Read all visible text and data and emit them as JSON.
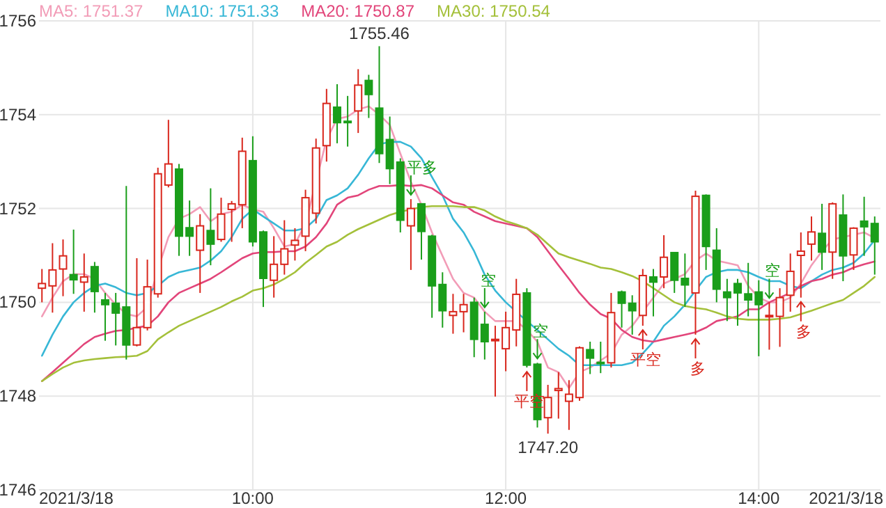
{
  "chart_data": {
    "type": "candlestick",
    "x": [
      8.3333,
      8.4167,
      8.5,
      8.5833,
      8.6667,
      8.75,
      8.8333,
      8.9167,
      9,
      9.0833,
      9.1667,
      9.25,
      9.3333,
      9.4167,
      9.5,
      9.5833,
      9.6667,
      9.75,
      9.8333,
      9.9167,
      10,
      10.0833,
      10.1667,
      10.25,
      10.3333,
      10.4167,
      10.5,
      10.5833,
      10.6667,
      10.75,
      10.8333,
      10.9167,
      11,
      11.0833,
      11.1667,
      11.25,
      11.3333,
      11.4167,
      11.5,
      11.5833,
      11.6667,
      11.75,
      11.8333,
      11.9167,
      12,
      12.0833,
      12.1667,
      12.25,
      12.3333,
      12.4167,
      12.5,
      12.5833,
      12.6667,
      12.75,
      12.8333,
      12.9167,
      13,
      13.0833,
      13.1667,
      13.25,
      13.3333,
      13.4167,
      13.5,
      13.5833,
      13.6667,
      13.75,
      13.8333,
      13.9167,
      14,
      14.0833,
      14.1667,
      14.25,
      14.3333,
      14.4167,
      14.5,
      14.5833,
      14.6667,
      14.75,
      14.8333,
      14.9167
    ],
    "ohlc": [
      [
        1750.3,
        1750.71,
        1750.0,
        1750.4
      ],
      [
        1750.35,
        1751.26,
        1749.78,
        1750.69
      ],
      [
        1750.71,
        1751.34,
        1750.13,
        1750.99
      ],
      [
        1750.59,
        1751.55,
        1750.18,
        1750.48
      ],
      [
        1750.43,
        1751.04,
        1749.8,
        1750.54
      ],
      [
        1750.76,
        1750.86,
        1749.78,
        1750.23
      ],
      [
        1750.05,
        1750.2,
        1749.18,
        1749.95
      ],
      [
        1749.98,
        1750.2,
        1749.08,
        1749.77
      ],
      [
        1749.9,
        1752.48,
        1748.78,
        1749.09
      ],
      [
        1749.09,
        1750.94,
        1749.06,
        1749.46
      ],
      [
        1749.46,
        1750.91,
        1749.4,
        1750.33
      ],
      [
        1750.18,
        1752.87,
        1750.1,
        1752.74
      ],
      [
        1752.5,
        1753.89,
        1752.45,
        1752.95
      ],
      [
        1752.84,
        1752.95,
        1750.99,
        1751.41
      ],
      [
        1751.59,
        1752.17,
        1750.99,
        1751.41
      ],
      [
        1751.11,
        1751.88,
        1750.2,
        1751.63
      ],
      [
        1751.53,
        1752.43,
        1750.79,
        1751.24
      ],
      [
        1751.34,
        1752.23,
        1751.29,
        1751.88
      ],
      [
        1751.98,
        1752.16,
        1751.29,
        1752.1
      ],
      [
        1752.08,
        1753.51,
        1751.58,
        1753.22
      ],
      [
        1753.02,
        1753.54,
        1751.19,
        1751.29
      ],
      [
        1751.5,
        1751.53,
        1749.9,
        1750.51
      ],
      [
        1750.47,
        1751.41,
        1750.1,
        1750.81
      ],
      [
        1750.81,
        1751.75,
        1750.59,
        1751.14
      ],
      [
        1751.22,
        1751.58,
        1750.89,
        1751.32
      ],
      [
        1751.41,
        1752.4,
        1751.09,
        1752.23
      ],
      [
        1751.9,
        1753.49,
        1751.68,
        1753.29
      ],
      [
        1753.34,
        1754.55,
        1753.0,
        1754.24
      ],
      [
        1754.16,
        1754.65,
        1753.39,
        1753.83
      ],
      [
        1753.86,
        1754.4,
        1753.32,
        1753.84
      ],
      [
        1754.08,
        1754.97,
        1753.61,
        1754.63
      ],
      [
        1754.73,
        1754.85,
        1753.93,
        1754.43
      ],
      [
        1754.14,
        1755.46,
        1752.97,
        1753.17
      ],
      [
        1753.47,
        1753.96,
        1752.52,
        1752.85
      ],
      [
        1752.99,
        1753.07,
        1751.49,
        1751.75
      ],
      [
        1751.63,
        1752.2,
        1750.69,
        1752.0
      ],
      [
        1752.1,
        1752.1,
        1750.91,
        1751.51
      ],
      [
        1751.41,
        1751.44,
        1749.67,
        1750.35
      ],
      [
        1750.38,
        1750.64,
        1749.46,
        1749.82
      ],
      [
        1749.72,
        1750.18,
        1749.33,
        1749.8
      ],
      [
        1749.8,
        1750.18,
        1749.36,
        1749.95
      ],
      [
        1750.0,
        1750.1,
        1748.83,
        1749.21
      ],
      [
        1749.53,
        1749.8,
        1748.78,
        1749.16
      ],
      [
        1749.19,
        1749.5,
        1747.99,
        1749.21
      ],
      [
        1749.01,
        1749.8,
        1748.53,
        1749.46
      ],
      [
        1749.41,
        1750.5,
        1749.06,
        1750.17
      ],
      [
        1750.2,
        1750.3,
        1748.61,
        1748.66
      ],
      [
        1748.68,
        1748.71,
        1747.33,
        1747.5
      ],
      [
        1747.54,
        1748.24,
        1747.2,
        1747.97
      ],
      [
        1748.12,
        1748.51,
        1747.52,
        1748.16
      ],
      [
        1747.89,
        1748.34,
        1747.28,
        1748.04
      ],
      [
        1747.97,
        1749.06,
        1747.9,
        1749.03
      ],
      [
        1748.99,
        1749.16,
        1748.47,
        1748.81
      ],
      [
        1748.72,
        1749.16,
        1748.49,
        1748.71
      ],
      [
        1748.71,
        1750.2,
        1748.61,
        1749.78
      ],
      [
        1750.22,
        1750.25,
        1749.46,
        1749.98
      ],
      [
        1749.98,
        1750.15,
        1749.31,
        1749.82
      ],
      [
        1749.72,
        1750.71,
        1749.5,
        1750.57
      ],
      [
        1750.54,
        1750.71,
        1749.7,
        1750.43
      ],
      [
        1750.54,
        1751.43,
        1750.3,
        1750.96
      ],
      [
        1751.06,
        1751.06,
        1750.2,
        1750.47
      ],
      [
        1750.51,
        1751.04,
        1749.9,
        1750.37
      ],
      [
        1750.2,
        1752.38,
        1749.31,
        1752.26
      ],
      [
        1752.28,
        1752.3,
        1750.69,
        1751.19
      ],
      [
        1751.11,
        1751.58,
        1750.0,
        1750.28
      ],
      [
        1750.22,
        1750.5,
        1749.6,
        1750.1
      ],
      [
        1750.4,
        1750.5,
        1749.5,
        1750.2
      ],
      [
        1750.18,
        1750.84,
        1749.7,
        1750.05
      ],
      [
        1750.22,
        1750.47,
        1748.85,
        1749.95
      ],
      [
        1749.69,
        1750.0,
        1748.99,
        1749.72
      ],
      [
        1749.7,
        1750.3,
        1749.05,
        1750.1
      ],
      [
        1750.15,
        1751.04,
        1749.8,
        1750.66
      ],
      [
        1751.0,
        1751.49,
        1750.1,
        1751.09
      ],
      [
        1751.24,
        1751.83,
        1750.89,
        1751.5
      ],
      [
        1751.47,
        1752.1,
        1750.69,
        1751.07
      ],
      [
        1751.07,
        1752.13,
        1750.5,
        1752.1
      ],
      [
        1751.86,
        1752.3,
        1750.45,
        1750.99
      ],
      [
        1751.01,
        1751.6,
        1750.69,
        1751.58
      ],
      [
        1751.73,
        1752.25,
        1750.99,
        1751.61
      ],
      [
        1751.68,
        1751.83,
        1750.59,
        1751.29
      ]
    ],
    "colors": [
      "#d9261c",
      "#d9261c",
      "#d9261c",
      "#1a9e1a",
      "#d9261c",
      "#1a9e1a",
      "#1a9e1a",
      "#1a9e1a",
      "#1a9e1a",
      "#d9261c",
      "#d9261c",
      "#d9261c",
      "#d9261c",
      "#1a9e1a",
      "#1a9e1a",
      "#d9261c",
      "#1a9e1a",
      "#d9261c",
      "#d9261c",
      "#d9261c",
      "#1a9e1a",
      "#1a9e1a",
      "#d9261c",
      "#d9261c",
      "#d9261c",
      "#d9261c",
      "#d9261c",
      "#d9261c",
      "#1a9e1a",
      "#1a9e1a",
      "#d9261c",
      "#1a9e1a",
      "#1a9e1a",
      "#1a9e1a",
      "#1a9e1a",
      "#d9261c",
      "#1a9e1a",
      "#1a9e1a",
      "#1a9e1a",
      "#d9261c",
      "#d9261c",
      "#1a9e1a",
      "#1a9e1a",
      "#d9261c",
      "#d9261c",
      "#d9261c",
      "#1a9e1a",
      "#1a9e1a",
      "#d9261c",
      "#d9261c",
      "#d9261c",
      "#d9261c",
      "#1a9e1a",
      "#1a9e1a",
      "#d9261c",
      "#1a9e1a",
      "#1a9e1a",
      "#d9261c",
      "#1a9e1a",
      "#d9261c",
      "#1a9e1a",
      "#1a9e1a",
      "#d9261c",
      "#1a9e1a",
      "#1a9e1a",
      "#1a9e1a",
      "#1a9e1a",
      "#1a9e1a",
      "#1a9e1a",
      "#d9261c",
      "#d9261c",
      "#d9261c",
      "#d9261c",
      "#d9261c",
      "#1a9e1a",
      "#d9261c",
      "#1a9e1a",
      "#d9261c",
      "#1a9e1a",
      "#1a9e1a"
    ],
    "series": [
      {
        "type": "line",
        "name": "MA5: 1751.37",
        "color": "#f29cb7",
        "values": [
          1749.7,
          1750.1,
          1750.45,
          1750.6,
          1750.6,
          1750.5,
          1750.2,
          1749.95,
          1749.75,
          1749.7,
          1749.9,
          1750.7,
          1751.39,
          1751.78,
          1751.88,
          1752.03,
          1751.73,
          1751.88,
          1751.93,
          1752.08,
          1751.98,
          1751.93,
          1751.58,
          1751.19,
          1751.24,
          1751.68,
          1752.57,
          1753.47,
          1753.91,
          1753.96,
          1754.11,
          1754.18,
          1754.0,
          1753.78,
          1753.17,
          1752.57,
          1752.08,
          1751.49,
          1750.99,
          1750.5,
          1750.2,
          1750.1,
          1749.8,
          1749.6,
          1749.6,
          1749.6,
          1749.41,
          1749.16,
          1748.61,
          1748.51,
          1748.17,
          1748.51,
          1748.61,
          1748.76,
          1748.91,
          1749.31,
          1749.5,
          1749.8,
          1750.1,
          1750.4,
          1750.5,
          1750.6,
          1750.89,
          1751.04,
          1750.89,
          1750.84,
          1750.79,
          1750.35,
          1750.1,
          1750.0,
          1750.0,
          1750.1,
          1750.4,
          1750.79,
          1751.09,
          1751.34,
          1751.39,
          1751.44,
          1751.49,
          1751.37
        ]
      },
      {
        "type": "line",
        "name": "MA10: 1751.33",
        "color": "#37b7d6",
        "values": [
          1748.86,
          1749.31,
          1749.7,
          1750.0,
          1750.2,
          1750.35,
          1750.4,
          1750.32,
          1750.2,
          1750.15,
          1750.2,
          1750.35,
          1750.54,
          1750.64,
          1750.69,
          1750.74,
          1750.89,
          1751.09,
          1751.39,
          1751.78,
          1751.98,
          1751.83,
          1751.68,
          1751.53,
          1751.53,
          1751.58,
          1751.78,
          1752.18,
          1752.28,
          1752.43,
          1752.72,
          1753.07,
          1753.37,
          1753.42,
          1753.42,
          1753.32,
          1753.07,
          1752.67,
          1752.28,
          1751.78,
          1751.49,
          1751.09,
          1750.59,
          1750.25,
          1750.0,
          1749.8,
          1749.6,
          1749.41,
          1749.21,
          1749.01,
          1748.86,
          1748.66,
          1748.66,
          1748.66,
          1748.66,
          1748.66,
          1748.71,
          1748.91,
          1749.16,
          1749.5,
          1749.7,
          1749.95,
          1750.25,
          1750.54,
          1750.64,
          1750.69,
          1750.69,
          1750.64,
          1750.54,
          1750.45,
          1750.45,
          1750.35,
          1750.3,
          1750.45,
          1750.59,
          1750.69,
          1750.74,
          1750.84,
          1751.04,
          1751.33
        ]
      },
      {
        "type": "line",
        "name": "MA20: 1750.87",
        "color": "#e2457a",
        "values": [
          1748.32,
          1748.51,
          1748.71,
          1748.91,
          1749.11,
          1749.26,
          1749.33,
          1749.39,
          1749.41,
          1749.46,
          1749.5,
          1749.7,
          1750.0,
          1750.2,
          1750.3,
          1750.4,
          1750.5,
          1750.64,
          1750.79,
          1750.94,
          1751.04,
          1751.07,
          1751.07,
          1751.09,
          1751.09,
          1751.19,
          1751.39,
          1751.68,
          1752.08,
          1752.23,
          1752.28,
          1752.4,
          1752.48,
          1752.48,
          1752.5,
          1752.48,
          1752.5,
          1752.43,
          1752.28,
          1752.13,
          1752.08,
          1751.93,
          1751.83,
          1751.73,
          1751.68,
          1751.63,
          1751.58,
          1751.39,
          1751.09,
          1750.79,
          1750.5,
          1750.2,
          1749.95,
          1749.75,
          1749.65,
          1749.41,
          1749.26,
          1749.19,
          1749.16,
          1749.21,
          1749.26,
          1749.31,
          1749.36,
          1749.46,
          1749.6,
          1749.65,
          1749.7,
          1749.85,
          1749.85,
          1750.0,
          1750.1,
          1750.2,
          1750.35,
          1750.45,
          1750.5,
          1750.59,
          1750.64,
          1750.74,
          1750.81,
          1750.87
        ]
      },
      {
        "type": "line",
        "name": "MA30: 1750.54",
        "color": "#a4c03a",
        "values": [
          1748.32,
          1748.47,
          1748.61,
          1748.71,
          1748.76,
          1748.79,
          1748.81,
          1748.83,
          1748.84,
          1748.86,
          1748.96,
          1749.21,
          1749.36,
          1749.5,
          1749.6,
          1749.7,
          1749.8,
          1749.9,
          1750.02,
          1750.12,
          1750.25,
          1750.3,
          1750.38,
          1750.5,
          1750.64,
          1750.84,
          1751.01,
          1751.19,
          1751.29,
          1751.44,
          1751.56,
          1751.66,
          1751.76,
          1751.86,
          1751.93,
          1751.98,
          1752.03,
          1752.05,
          1752.05,
          1752.05,
          1752.03,
          1752.03,
          1751.96,
          1751.83,
          1751.73,
          1751.66,
          1751.58,
          1751.44,
          1751.24,
          1751.04,
          1750.96,
          1750.89,
          1750.82,
          1750.74,
          1750.71,
          1750.64,
          1750.56,
          1750.45,
          1750.3,
          1750.15,
          1750.0,
          1749.92,
          1749.88,
          1749.85,
          1749.78,
          1749.7,
          1749.65,
          1749.63,
          1749.63,
          1749.63,
          1749.65,
          1749.68,
          1749.75,
          1749.82,
          1749.9,
          1749.98,
          1750.05,
          1750.2,
          1750.35,
          1750.54
        ]
      }
    ],
    "annotations": [
      {
        "text": "1755.46",
        "x": 11,
        "y": 1755.46
      },
      {
        "text": "1747.20",
        "x": 12.3333,
        "y": 1747.2
      },
      {
        "text": "平多",
        "x": 11.25,
        "y": 1752.2
      },
      {
        "text": "空",
        "x": 11.8333,
        "y": 1749.8
      },
      {
        "text": "平空",
        "x": 12.1667,
        "y": 1748.61
      },
      {
        "text": "空",
        "x": 12.25,
        "y": 1748.71
      },
      {
        "text": "平空",
        "x": 13.0833,
        "y": 1749.5
      },
      {
        "text": "多",
        "x": 13.5,
        "y": 1749.31
      },
      {
        "text": "空",
        "x": 14.0833,
        "y": 1750.0
      },
      {
        "text": "多",
        "x": 14.3333,
        "y": 1750.1
      },
      "2021/3/18",
      "2021/3/18"
    ],
    "xlim": [
      8.31,
      14.94
    ],
    "xticks": [
      {
        "value": 10,
        "label": "10:00"
      },
      {
        "value": 12,
        "label": "12:00"
      },
      {
        "value": 14,
        "label": "14:00"
      }
    ],
    "ylim": [
      1746,
      1756
    ],
    "yticks": [
      1746,
      1748,
      1750,
      1752,
      1754,
      1756
    ],
    "grid": true,
    "legend": "top left"
  }
}
